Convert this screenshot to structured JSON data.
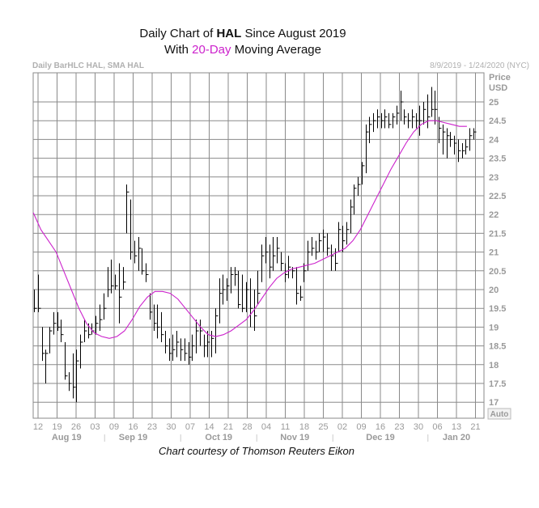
{
  "title": {
    "line1_prefix": "Daily Chart of ",
    "ticker": "HAL",
    "line1_suffix": " Since August 2019",
    "line2_prefix": "With ",
    "highlight": "20-Day",
    "line2_suffix": " Moving Average"
  },
  "header_left": "Daily BarHLC HAL, SMA HAL",
  "header_right": "8/9/2019 - 1/24/2020 (NYC)",
  "courtesy": "Chart courtesy of Thomson Reuters Eikon",
  "colors": {
    "grid": "#8a8a8a",
    "bars": "#000000",
    "sma": "#cc22cc",
    "axis_text": "#9a9a9a"
  },
  "chart_data": {
    "type": "ohlc",
    "title": "Daily Chart of HAL Since August 2019",
    "subtitle": "With 20-Day Moving Average",
    "ylabel": "Price USD",
    "y_label_line1": "Price",
    "y_label_line2": "USD",
    "ylim": [
      16.6,
      25.5
    ],
    "yticks": [
      "17",
      "17.5",
      "18",
      "18.5",
      "19",
      "19.5",
      "20",
      "20.5",
      "21",
      "21.5",
      "22",
      "22.5",
      "23",
      "23.5",
      "24",
      "24.5",
      "25"
    ],
    "xticks": [
      "12",
      "19",
      "26",
      "03",
      "09",
      "16",
      "23",
      "30",
      "07",
      "14",
      "21",
      "28",
      "04",
      "11",
      "18",
      "25",
      "02",
      "09",
      "16",
      "23",
      "30",
      "06",
      "13",
      "21"
    ],
    "auto_label": "Auto",
    "months": [
      {
        "label": "Aug 19",
        "center_tick": 1.5
      },
      {
        "label": "Sep 19",
        "center_tick": 5
      },
      {
        "label": "Oct 19",
        "center_tick": 9.5
      },
      {
        "label": "Nov 19",
        "center_tick": 13.5
      },
      {
        "label": "Dec 19",
        "center_tick": 18
      },
      {
        "label": "Jan 20",
        "center_tick": 22
      }
    ],
    "month_separators": [
      3.5,
      7.5,
      11.5,
      15.5,
      20.5
    ],
    "bars": [
      [
        20.0,
        19.4,
        19.5
      ],
      [
        20.4,
        19.4,
        19.5
      ],
      [
        19.0,
        18.1,
        18.3
      ],
      [
        18.4,
        17.5,
        18.3
      ],
      [
        19.0,
        18.3,
        18.9
      ],
      [
        19.4,
        18.8,
        19.1
      ],
      [
        19.4,
        18.9,
        19.0
      ],
      [
        19.2,
        18.6,
        18.8
      ],
      [
        18.6,
        17.6,
        17.7
      ],
      [
        17.8,
        17.3,
        17.5
      ],
      [
        18.3,
        17.1,
        17.4
      ],
      [
        18.4,
        17.0,
        18.1
      ],
      [
        18.8,
        17.9,
        18.6
      ],
      [
        19.2,
        18.6,
        18.9
      ],
      [
        19.1,
        18.7,
        18.8
      ],
      [
        19.1,
        18.8,
        18.9
      ],
      [
        19.3,
        18.8,
        19.1
      ],
      [
        19.6,
        18.9,
        19.2
      ],
      [
        19.9,
        19.2,
        19.5
      ],
      [
        20.6,
        19.8,
        20.0
      ],
      [
        20.8,
        19.9,
        20.1
      ],
      [
        20.4,
        20.0,
        20.1
      ],
      [
        20.7,
        19.1,
        19.8
      ],
      [
        20.6,
        20.0,
        20.2
      ],
      [
        22.8,
        21.5,
        22.6
      ],
      [
        22.4,
        20.8,
        21.0
      ],
      [
        21.3,
        20.7,
        20.9
      ],
      [
        21.4,
        20.5,
        21.1
      ],
      [
        21.1,
        20.4,
        20.5
      ],
      [
        20.7,
        20.2,
        20.4
      ],
      [
        19.9,
        19.2,
        19.4
      ],
      [
        19.6,
        18.9,
        19.1
      ],
      [
        19.6,
        18.7,
        19.0
      ],
      [
        19.4,
        18.6,
        18.8
      ],
      [
        18.9,
        18.3,
        18.5
      ],
      [
        18.7,
        18.1,
        18.3
      ],
      [
        18.8,
        18.1,
        18.4
      ],
      [
        18.9,
        18.2,
        18.6
      ],
      [
        18.7,
        18.1,
        18.4
      ],
      [
        18.7,
        18.1,
        18.3
      ],
      [
        18.6,
        18.0,
        18.2
      ],
      [
        18.8,
        18.1,
        18.5
      ],
      [
        19.2,
        18.3,
        18.9
      ],
      [
        19.2,
        18.5,
        18.9
      ],
      [
        18.8,
        18.2,
        18.5
      ],
      [
        18.9,
        18.2,
        18.6
      ],
      [
        18.9,
        18.2,
        18.7
      ],
      [
        19.5,
        18.3,
        19.3
      ],
      [
        20.3,
        19.1,
        19.9
      ],
      [
        20.4,
        19.6,
        20.0
      ],
      [
        20.3,
        19.7,
        20.1
      ],
      [
        20.6,
        19.9,
        20.4
      ],
      [
        20.6,
        20.1,
        20.4
      ],
      [
        20.5,
        19.5,
        19.6
      ],
      [
        20.4,
        19.4,
        19.5
      ],
      [
        20.2,
        19.4,
        20.0
      ],
      [
        20.3,
        19.0,
        19.5
      ],
      [
        20.0,
        18.9,
        19.3
      ],
      [
        20.5,
        19.6,
        19.9
      ],
      [
        21.2,
        20.2,
        20.9
      ],
      [
        21.4,
        20.7,
        21.0
      ],
      [
        21.2,
        20.3,
        20.6
      ],
      [
        21.4,
        20.5,
        20.9
      ],
      [
        21.4,
        20.7,
        21.1
      ],
      [
        21.0,
        20.5,
        20.7
      ],
      [
        20.7,
        20.2,
        20.4
      ],
      [
        20.9,
        20.3,
        20.6
      ],
      [
        20.6,
        20.3,
        20.5
      ],
      [
        20.6,
        19.6,
        19.9
      ],
      [
        20.1,
        19.7,
        19.8
      ],
      [
        20.7,
        20.2,
        20.5
      ],
      [
        21.3,
        20.5,
        21.0
      ],
      [
        21.4,
        20.9,
        21.1
      ],
      [
        21.3,
        20.8,
        21.0
      ],
      [
        21.5,
        21.0,
        21.3
      ],
      [
        21.6,
        21.0,
        21.4
      ],
      [
        21.5,
        20.9,
        21.1
      ],
      [
        21.2,
        20.5,
        20.9
      ],
      [
        21.1,
        20.5,
        20.7
      ],
      [
        21.8,
        21.0,
        21.6
      ],
      [
        21.7,
        21.0,
        21.3
      ],
      [
        21.8,
        21.2,
        21.6
      ],
      [
        22.4,
        21.5,
        22.2
      ],
      [
        22.8,
        22.0,
        22.7
      ],
      [
        23.0,
        22.5,
        22.8
      ],
      [
        23.4,
        22.8,
        23.3
      ],
      [
        24.4,
        23.1,
        24.2
      ],
      [
        24.6,
        23.9,
        24.4
      ],
      [
        24.7,
        24.2,
        24.5
      ],
      [
        24.8,
        24.3,
        24.6
      ],
      [
        24.7,
        24.3,
        24.5
      ],
      [
        24.8,
        24.3,
        24.6
      ],
      [
        24.7,
        24.3,
        24.4
      ],
      [
        24.7,
        24.3,
        24.6
      ],
      [
        24.9,
        24.4,
        24.7
      ],
      [
        25.3,
        24.5,
        25.0
      ],
      [
        24.8,
        24.4,
        24.6
      ],
      [
        24.7,
        24.3,
        24.5
      ],
      [
        24.8,
        24.3,
        24.6
      ],
      [
        24.7,
        24.3,
        24.5
      ],
      [
        24.9,
        24.1,
        24.5
      ],
      [
        25.0,
        24.4,
        24.8
      ],
      [
        25.2,
        24.3,
        24.6
      ],
      [
        25.4,
        24.6,
        24.8
      ],
      [
        25.3,
        24.4,
        24.8
      ],
      [
        24.6,
        23.9,
        24.3
      ],
      [
        24.4,
        23.6,
        24.2
      ],
      [
        24.3,
        23.5,
        24.1
      ],
      [
        24.2,
        23.8,
        24.0
      ],
      [
        24.1,
        23.6,
        23.9
      ],
      [
        24.0,
        23.4,
        23.7
      ],
      [
        23.9,
        23.5,
        23.7
      ],
      [
        24.0,
        23.6,
        23.8
      ],
      [
        24.3,
        23.7,
        24.1
      ],
      [
        24.3,
        24.0,
        24.2
      ]
    ],
    "sma20": [
      {
        "t": 0.0,
        "v": 22.05
      },
      {
        "t": 0.4,
        "v": 21.6
      },
      {
        "t": 0.8,
        "v": 21.3
      },
      {
        "t": 1.2,
        "v": 21.0
      },
      {
        "t": 1.6,
        "v": 20.5
      },
      {
        "t": 2.0,
        "v": 20.0
      },
      {
        "t": 2.4,
        "v": 19.5
      },
      {
        "t": 2.8,
        "v": 19.1
      },
      {
        "t": 3.2,
        "v": 18.85
      },
      {
        "t": 3.6,
        "v": 18.75
      },
      {
        "t": 4.0,
        "v": 18.7
      },
      {
        "t": 4.4,
        "v": 18.75
      },
      {
        "t": 4.8,
        "v": 18.9
      },
      {
        "t": 5.2,
        "v": 19.2
      },
      {
        "t": 5.6,
        "v": 19.55
      },
      {
        "t": 6.0,
        "v": 19.8
      },
      {
        "t": 6.4,
        "v": 19.95
      },
      {
        "t": 6.8,
        "v": 19.95
      },
      {
        "t": 7.2,
        "v": 19.9
      },
      {
        "t": 7.6,
        "v": 19.75
      },
      {
        "t": 8.0,
        "v": 19.5
      },
      {
        "t": 8.4,
        "v": 19.25
      },
      {
        "t": 8.8,
        "v": 19.0
      },
      {
        "t": 9.2,
        "v": 18.8
      },
      {
        "t": 9.6,
        "v": 18.75
      },
      {
        "t": 10.0,
        "v": 18.8
      },
      {
        "t": 10.4,
        "v": 18.9
      },
      {
        "t": 10.8,
        "v": 19.05
      },
      {
        "t": 11.2,
        "v": 19.2
      },
      {
        "t": 11.6,
        "v": 19.45
      },
      {
        "t": 12.0,
        "v": 19.75
      },
      {
        "t": 12.4,
        "v": 20.05
      },
      {
        "t": 12.8,
        "v": 20.3
      },
      {
        "t": 13.2,
        "v": 20.45
      },
      {
        "t": 13.6,
        "v": 20.55
      },
      {
        "t": 14.0,
        "v": 20.6
      },
      {
        "t": 14.4,
        "v": 20.65
      },
      {
        "t": 14.8,
        "v": 20.7
      },
      {
        "t": 15.2,
        "v": 20.8
      },
      {
        "t": 15.6,
        "v": 20.9
      },
      {
        "t": 16.0,
        "v": 21.0
      },
      {
        "t": 16.4,
        "v": 21.1
      },
      {
        "t": 16.8,
        "v": 21.3
      },
      {
        "t": 17.2,
        "v": 21.6
      },
      {
        "t": 17.6,
        "v": 22.0
      },
      {
        "t": 18.0,
        "v": 22.4
      },
      {
        "t": 18.4,
        "v": 22.8
      },
      {
        "t": 18.8,
        "v": 23.2
      },
      {
        "t": 19.2,
        "v": 23.55
      },
      {
        "t": 19.6,
        "v": 23.9
      },
      {
        "t": 20.0,
        "v": 24.2
      },
      {
        "t": 20.4,
        "v": 24.4
      },
      {
        "t": 20.8,
        "v": 24.5
      },
      {
        "t": 21.2,
        "v": 24.5
      },
      {
        "t": 21.6,
        "v": 24.45
      },
      {
        "t": 22.0,
        "v": 24.4
      },
      {
        "t": 22.4,
        "v": 24.35
      },
      {
        "t": 22.8,
        "v": 24.35
      }
    ]
  }
}
